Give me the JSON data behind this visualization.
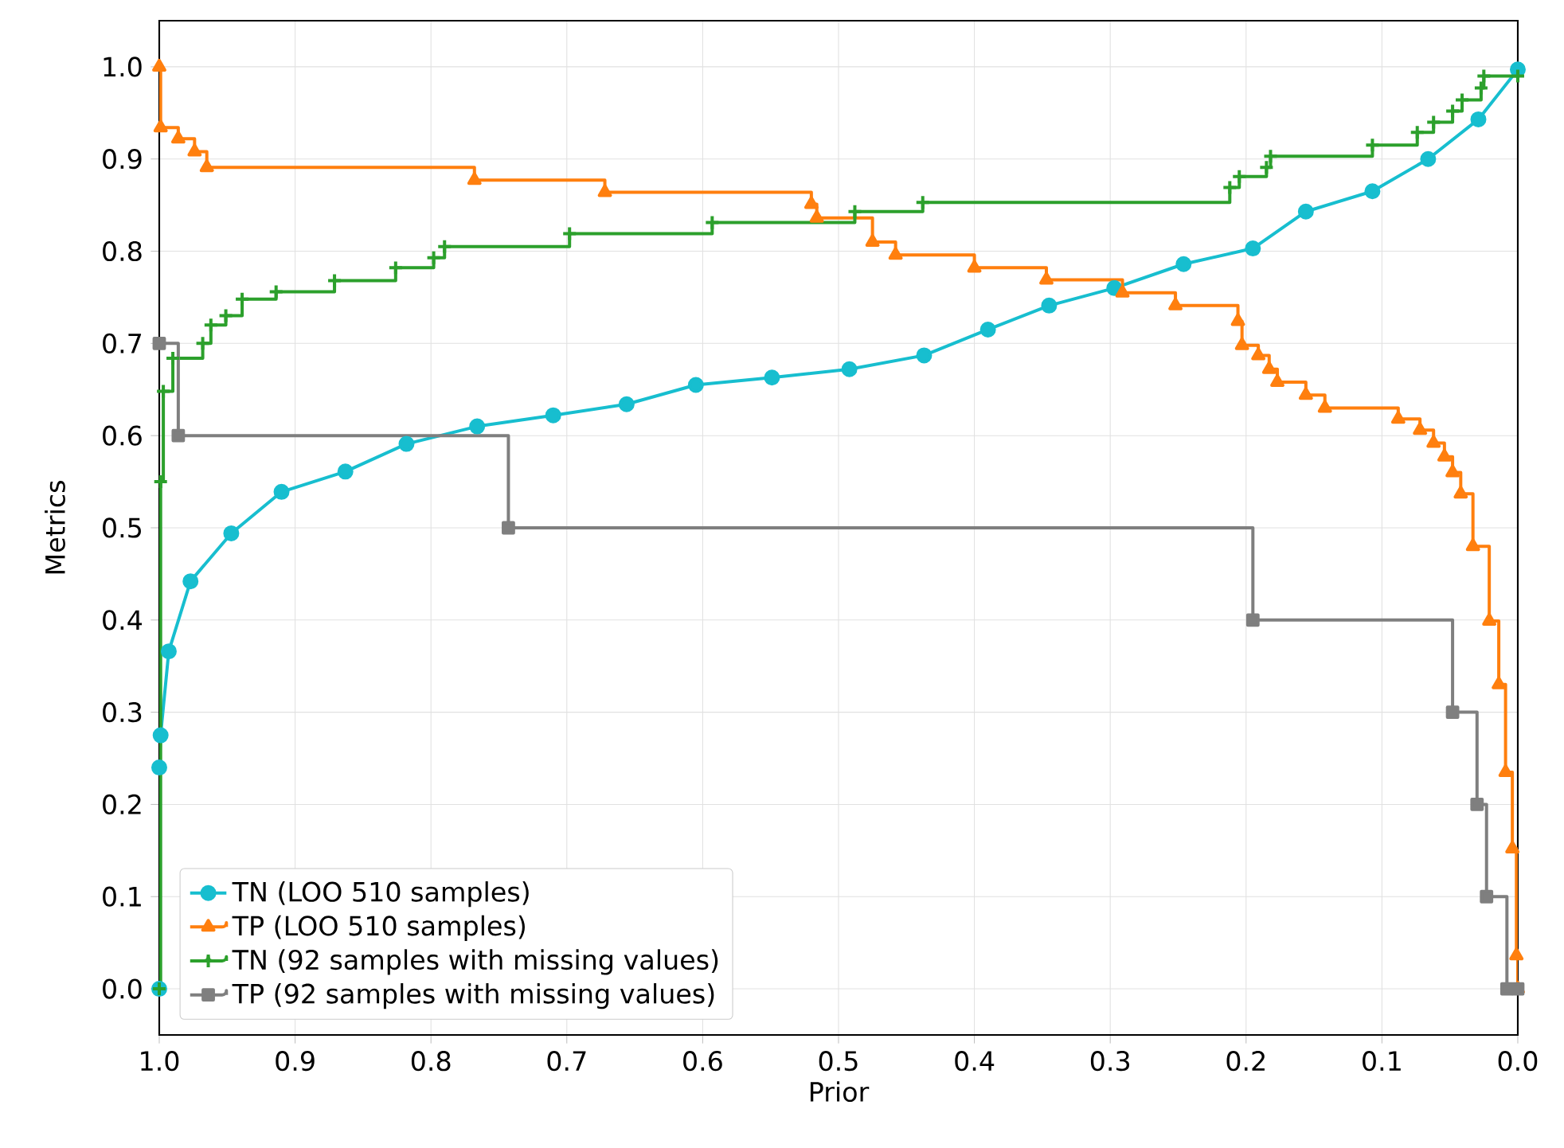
{
  "chart_data": {
    "type": "step",
    "xlabel": "Prior",
    "ylabel": "Metrics",
    "xlim": [
      1.0,
      0.0
    ],
    "ylim": [
      -0.05,
      1.05
    ],
    "xticks": [
      {
        "value": 1.0,
        "label": "1.0"
      },
      {
        "value": 0.9,
        "label": "0.9"
      },
      {
        "value": 0.8,
        "label": "0.8"
      },
      {
        "value": 0.7,
        "label": "0.7"
      },
      {
        "value": 0.6,
        "label": "0.6"
      },
      {
        "value": 0.5,
        "label": "0.5"
      },
      {
        "value": 0.4,
        "label": "0.4"
      },
      {
        "value": 0.3,
        "label": "0.3"
      },
      {
        "value": 0.2,
        "label": "0.2"
      },
      {
        "value": 0.1,
        "label": "0.1"
      },
      {
        "value": 0.0,
        "label": "0.0"
      }
    ],
    "yticks": [
      {
        "value": 0.0,
        "label": "0.0"
      },
      {
        "value": 0.1,
        "label": "0.1"
      },
      {
        "value": 0.2,
        "label": "0.2"
      },
      {
        "value": 0.3,
        "label": "0.3"
      },
      {
        "value": 0.4,
        "label": "0.4"
      },
      {
        "value": 0.5,
        "label": "0.5"
      },
      {
        "value": 0.6,
        "label": "0.6"
      },
      {
        "value": 0.7,
        "label": "0.7"
      },
      {
        "value": 0.8,
        "label": "0.8"
      },
      {
        "value": 0.9,
        "label": "0.9"
      },
      {
        "value": 1.0,
        "label": "1.0"
      }
    ],
    "grid": true,
    "legend": "bottom left",
    "series": [
      {
        "name": "TN (LOO 510 samples)",
        "type": "line",
        "marker": "circle",
        "color": "#17becf",
        "x": [
          1.0,
          1.0,
          0.999,
          0.993,
          0.977,
          0.947,
          0.91,
          0.863,
          0.818,
          0.766,
          0.71,
          0.656,
          0.605,
          0.549,
          0.492,
          0.437,
          0.39,
          0.345,
          0.297,
          0.246,
          0.195,
          0.156,
          0.107,
          0.066,
          0.029,
          0.0
        ],
        "values": [
          0.0,
          0.24,
          0.275,
          0.366,
          0.442,
          0.494,
          0.539,
          0.561,
          0.591,
          0.61,
          0.622,
          0.634,
          0.655,
          0.663,
          0.672,
          0.687,
          0.715,
          0.741,
          0.76,
          0.786,
          0.803,
          0.843,
          0.865,
          0.9,
          0.943,
          0.997
        ]
      },
      {
        "name": "TP (LOO 510 samples)",
        "marker": "triangle",
        "color": "#ff7f0e",
        "x": [
          1.0,
          0.999,
          0.986,
          0.974,
          0.965,
          0.768,
          0.672,
          0.52,
          0.516,
          0.475,
          0.458,
          0.4,
          0.347,
          0.291,
          0.252,
          0.206,
          0.203,
          0.191,
          0.183,
          0.177,
          0.156,
          0.142,
          0.088,
          0.072,
          0.062,
          0.054,
          0.048,
          0.042,
          0.033,
          0.021,
          0.014,
          0.009,
          0.004,
          0.001,
          0.0
        ],
        "values": [
          1.0,
          0.934,
          0.922,
          0.908,
          0.891,
          0.877,
          0.864,
          0.851,
          0.836,
          0.81,
          0.796,
          0.782,
          0.769,
          0.755,
          0.741,
          0.724,
          0.698,
          0.687,
          0.672,
          0.658,
          0.644,
          0.63,
          0.618,
          0.606,
          0.592,
          0.577,
          0.56,
          0.537,
          0.48,
          0.399,
          0.33,
          0.235,
          0.152,
          0.036,
          0.0
        ]
      },
      {
        "name": "TN (92 samples with missing values)",
        "marker": "cross",
        "color": "#2ca02c",
        "x": [
          1.0,
          0.999,
          0.997,
          0.99,
          0.968,
          0.962,
          0.951,
          0.939,
          0.914,
          0.871,
          0.826,
          0.798,
          0.79,
          0.698,
          0.593,
          0.488,
          0.438,
          0.212,
          0.205,
          0.185,
          0.182,
          0.107,
          0.074,
          0.062,
          0.048,
          0.041,
          0.027,
          0.025,
          0.0
        ],
        "values": [
          0.0,
          0.55,
          0.648,
          0.684,
          0.7,
          0.72,
          0.73,
          0.748,
          0.756,
          0.768,
          0.782,
          0.793,
          0.805,
          0.819,
          0.831,
          0.843,
          0.853,
          0.869,
          0.881,
          0.891,
          0.903,
          0.915,
          0.929,
          0.94,
          0.952,
          0.964,
          0.977,
          0.99,
          0.99
        ]
      },
      {
        "name": "TP (92 samples with missing values)",
        "marker": "square",
        "color": "#7f7f7f",
        "x": [
          1.0,
          0.986,
          0.743,
          0.195,
          0.048,
          0.03,
          0.023,
          0.008,
          0.0
        ],
        "values": [
          0.7,
          0.6,
          0.5,
          0.4,
          0.3,
          0.2,
          0.1,
          0.0,
          0.0
        ]
      }
    ]
  }
}
